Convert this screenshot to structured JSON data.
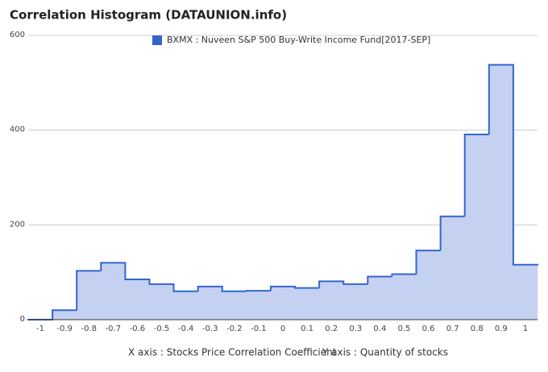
{
  "chart_data": {
    "type": "stepped-area",
    "title": "Correlation Histogram (DATAUNION.info)",
    "xlabel": "X axis : Stocks Price Correlation Coefficient",
    "ylabel": "Y axis : Quantity of stocks",
    "categories": [
      "-1",
      "-0.9",
      "-0.8",
      "-0.7",
      "-0.6",
      "-0.5",
      "-0.4",
      "-0.3",
      "-0.2",
      "-0.1",
      "0",
      "0.1",
      "0.2",
      "0.3",
      "0.4",
      "0.5",
      "0.6",
      "0.7",
      "0.8",
      "0.9",
      "1"
    ],
    "series": [
      {
        "name": "BXMX : Nuveen S&P 500 Buy-Write Income Fund[2017-SEP]",
        "color": "#3366cc",
        "fill": "#c5d1f0",
        "values": [
          0,
          20,
          103,
          120,
          85,
          75,
          60,
          70,
          60,
          61,
          70,
          67,
          81,
          75,
          91,
          96,
          146,
          218,
          391,
          538,
          116
        ]
      }
    ],
    "ylim": [
      0,
      600
    ],
    "yticks": [
      0,
      200,
      400,
      600
    ],
    "grid": true,
    "legend": "top"
  }
}
